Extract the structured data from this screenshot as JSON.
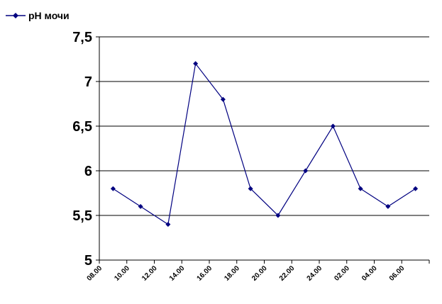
{
  "chart_data": {
    "type": "line",
    "title": "",
    "xlabel": "",
    "ylabel": "",
    "categories": [
      "08.00",
      "10.00",
      "12.00",
      "14.00",
      "16.00",
      "18.00",
      "20.00",
      "22.00",
      "24.00",
      "02.00",
      "04.00",
      "06.00"
    ],
    "series": [
      {
        "name": "pH мочи",
        "values": [
          5.8,
          5.6,
          5.4,
          7.2,
          6.8,
          5.8,
          5.5,
          6.0,
          6.5,
          5.8,
          5.6,
          5.8
        ],
        "color": "#000080"
      }
    ],
    "ylim": [
      5,
      7.5
    ],
    "yticks": [
      "5",
      "5,5",
      "6",
      "6,5",
      "7",
      "7,5"
    ],
    "grid": true,
    "legend": "top-left"
  }
}
